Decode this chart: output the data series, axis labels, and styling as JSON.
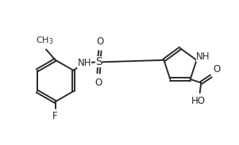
{
  "bg_color": "#ffffff",
  "line_color": "#2a2a2a",
  "line_width": 1.4,
  "font_size": 8.5,
  "xlim": [
    0,
    10
  ],
  "ylim": [
    0,
    6.1
  ]
}
